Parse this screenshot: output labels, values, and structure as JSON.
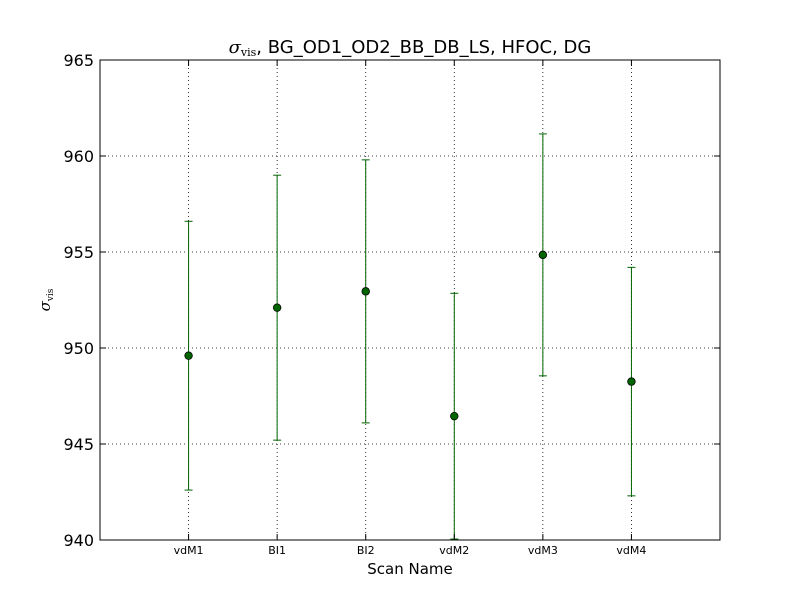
{
  "chart_data": {
    "type": "scatter",
    "title_symbol": "σ",
    "title_symbol_sub": "vis",
    "title_rest": ", BG_OD1_OD2_BB_DB_LS, HFOC, DG",
    "xlabel": "Scan Name",
    "ylabel_symbol": "σ",
    "ylabel_sub": "vis",
    "categories": [
      "vdM1",
      "BI1",
      "BI2",
      "vdM2",
      "vdM3",
      "vdM4"
    ],
    "values": [
      949.6,
      952.1,
      952.95,
      946.45,
      954.85,
      948.25
    ],
    "errors": [
      7.0,
      6.9,
      6.85,
      6.4,
      6.3,
      5.95
    ],
    "ylim": [
      940,
      965
    ],
    "yticks": [
      940,
      945,
      950,
      955,
      960,
      965
    ],
    "xlim": [
      0,
      7
    ],
    "grid": true,
    "color": "#006400",
    "marker_color": "#006400"
  }
}
